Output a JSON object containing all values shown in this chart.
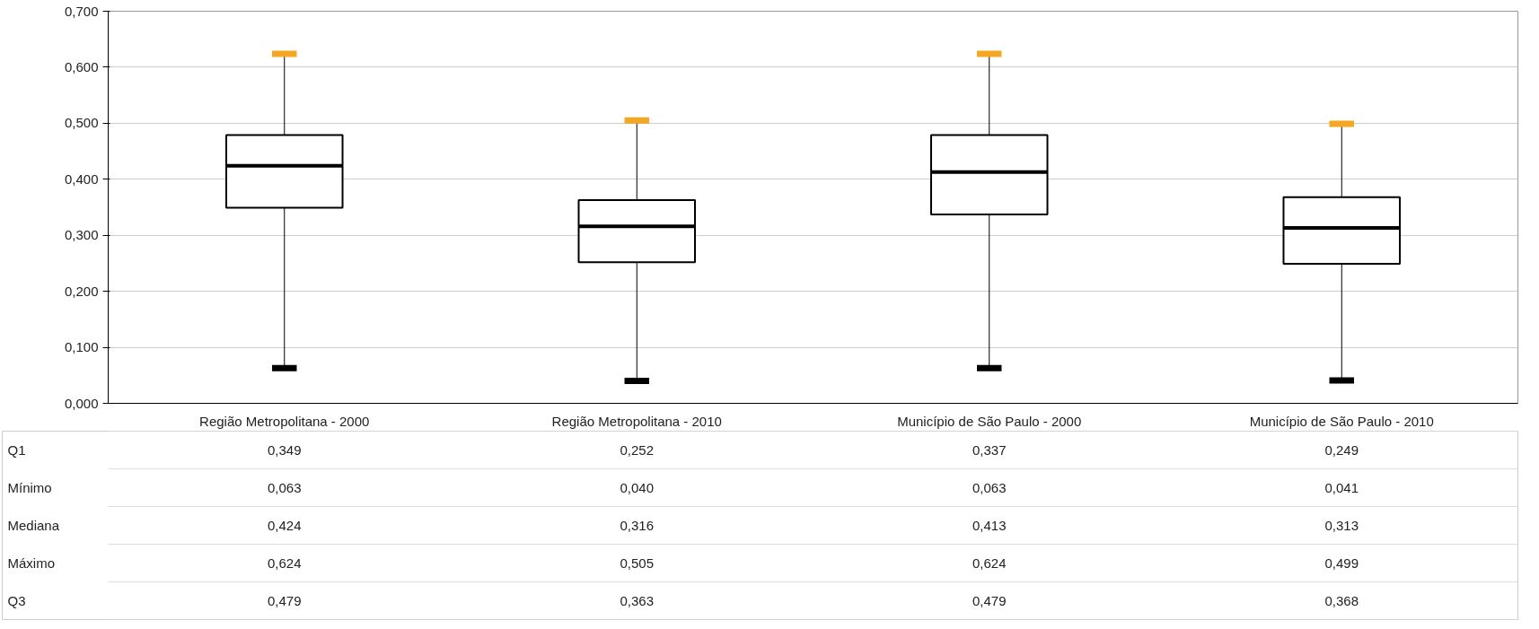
{
  "chart_data": {
    "type": "box",
    "categories": [
      "Região Metropolitana - 2000",
      "Região Metropolitana - 2010",
      "Município de São Paulo - 2000",
      "Município de São Paulo - 2010"
    ],
    "boxes": [
      {
        "low": 0.063,
        "q1": 0.349,
        "median": 0.424,
        "q3": 0.479,
        "high": 0.624
      },
      {
        "low": 0.04,
        "q1": 0.252,
        "median": 0.316,
        "q3": 0.363,
        "high": 0.505
      },
      {
        "low": 0.063,
        "q1": 0.337,
        "median": 0.413,
        "q3": 0.479,
        "high": 0.624
      },
      {
        "low": 0.041,
        "q1": 0.249,
        "median": 0.313,
        "q3": 0.368,
        "high": 0.499
      }
    ],
    "color": "#000000",
    "ylim": [
      0,
      0.7
    ],
    "yticks": [
      {
        "value": 0,
        "label": "0,000"
      },
      {
        "value": 0.1,
        "label": "0,100"
      },
      {
        "value": 0.2,
        "label": "0,200"
      },
      {
        "value": 0.3,
        "label": "0,300"
      },
      {
        "value": 0.4,
        "label": "0,400"
      },
      {
        "value": 0.5,
        "label": "0,500"
      },
      {
        "value": 0.6,
        "label": "0,600"
      },
      {
        "value": 0.7,
        "label": "0,700"
      }
    ],
    "grid": "y",
    "data_labels": true,
    "annotations": [
      "Q1",
      "Mínimo",
      "Mediana",
      "Máximo",
      "Q3",
      "0,349",
      "0,252",
      "0,337",
      "0,249",
      "0,063",
      "0,040",
      "0,063",
      "0,041",
      "0,424",
      "0,316",
      "0,413",
      "0,313",
      "0,624",
      "0,505",
      "0,624",
      "0,499",
      "0,479",
      "0,363",
      "0,479",
      "0,368"
    ]
  }
}
